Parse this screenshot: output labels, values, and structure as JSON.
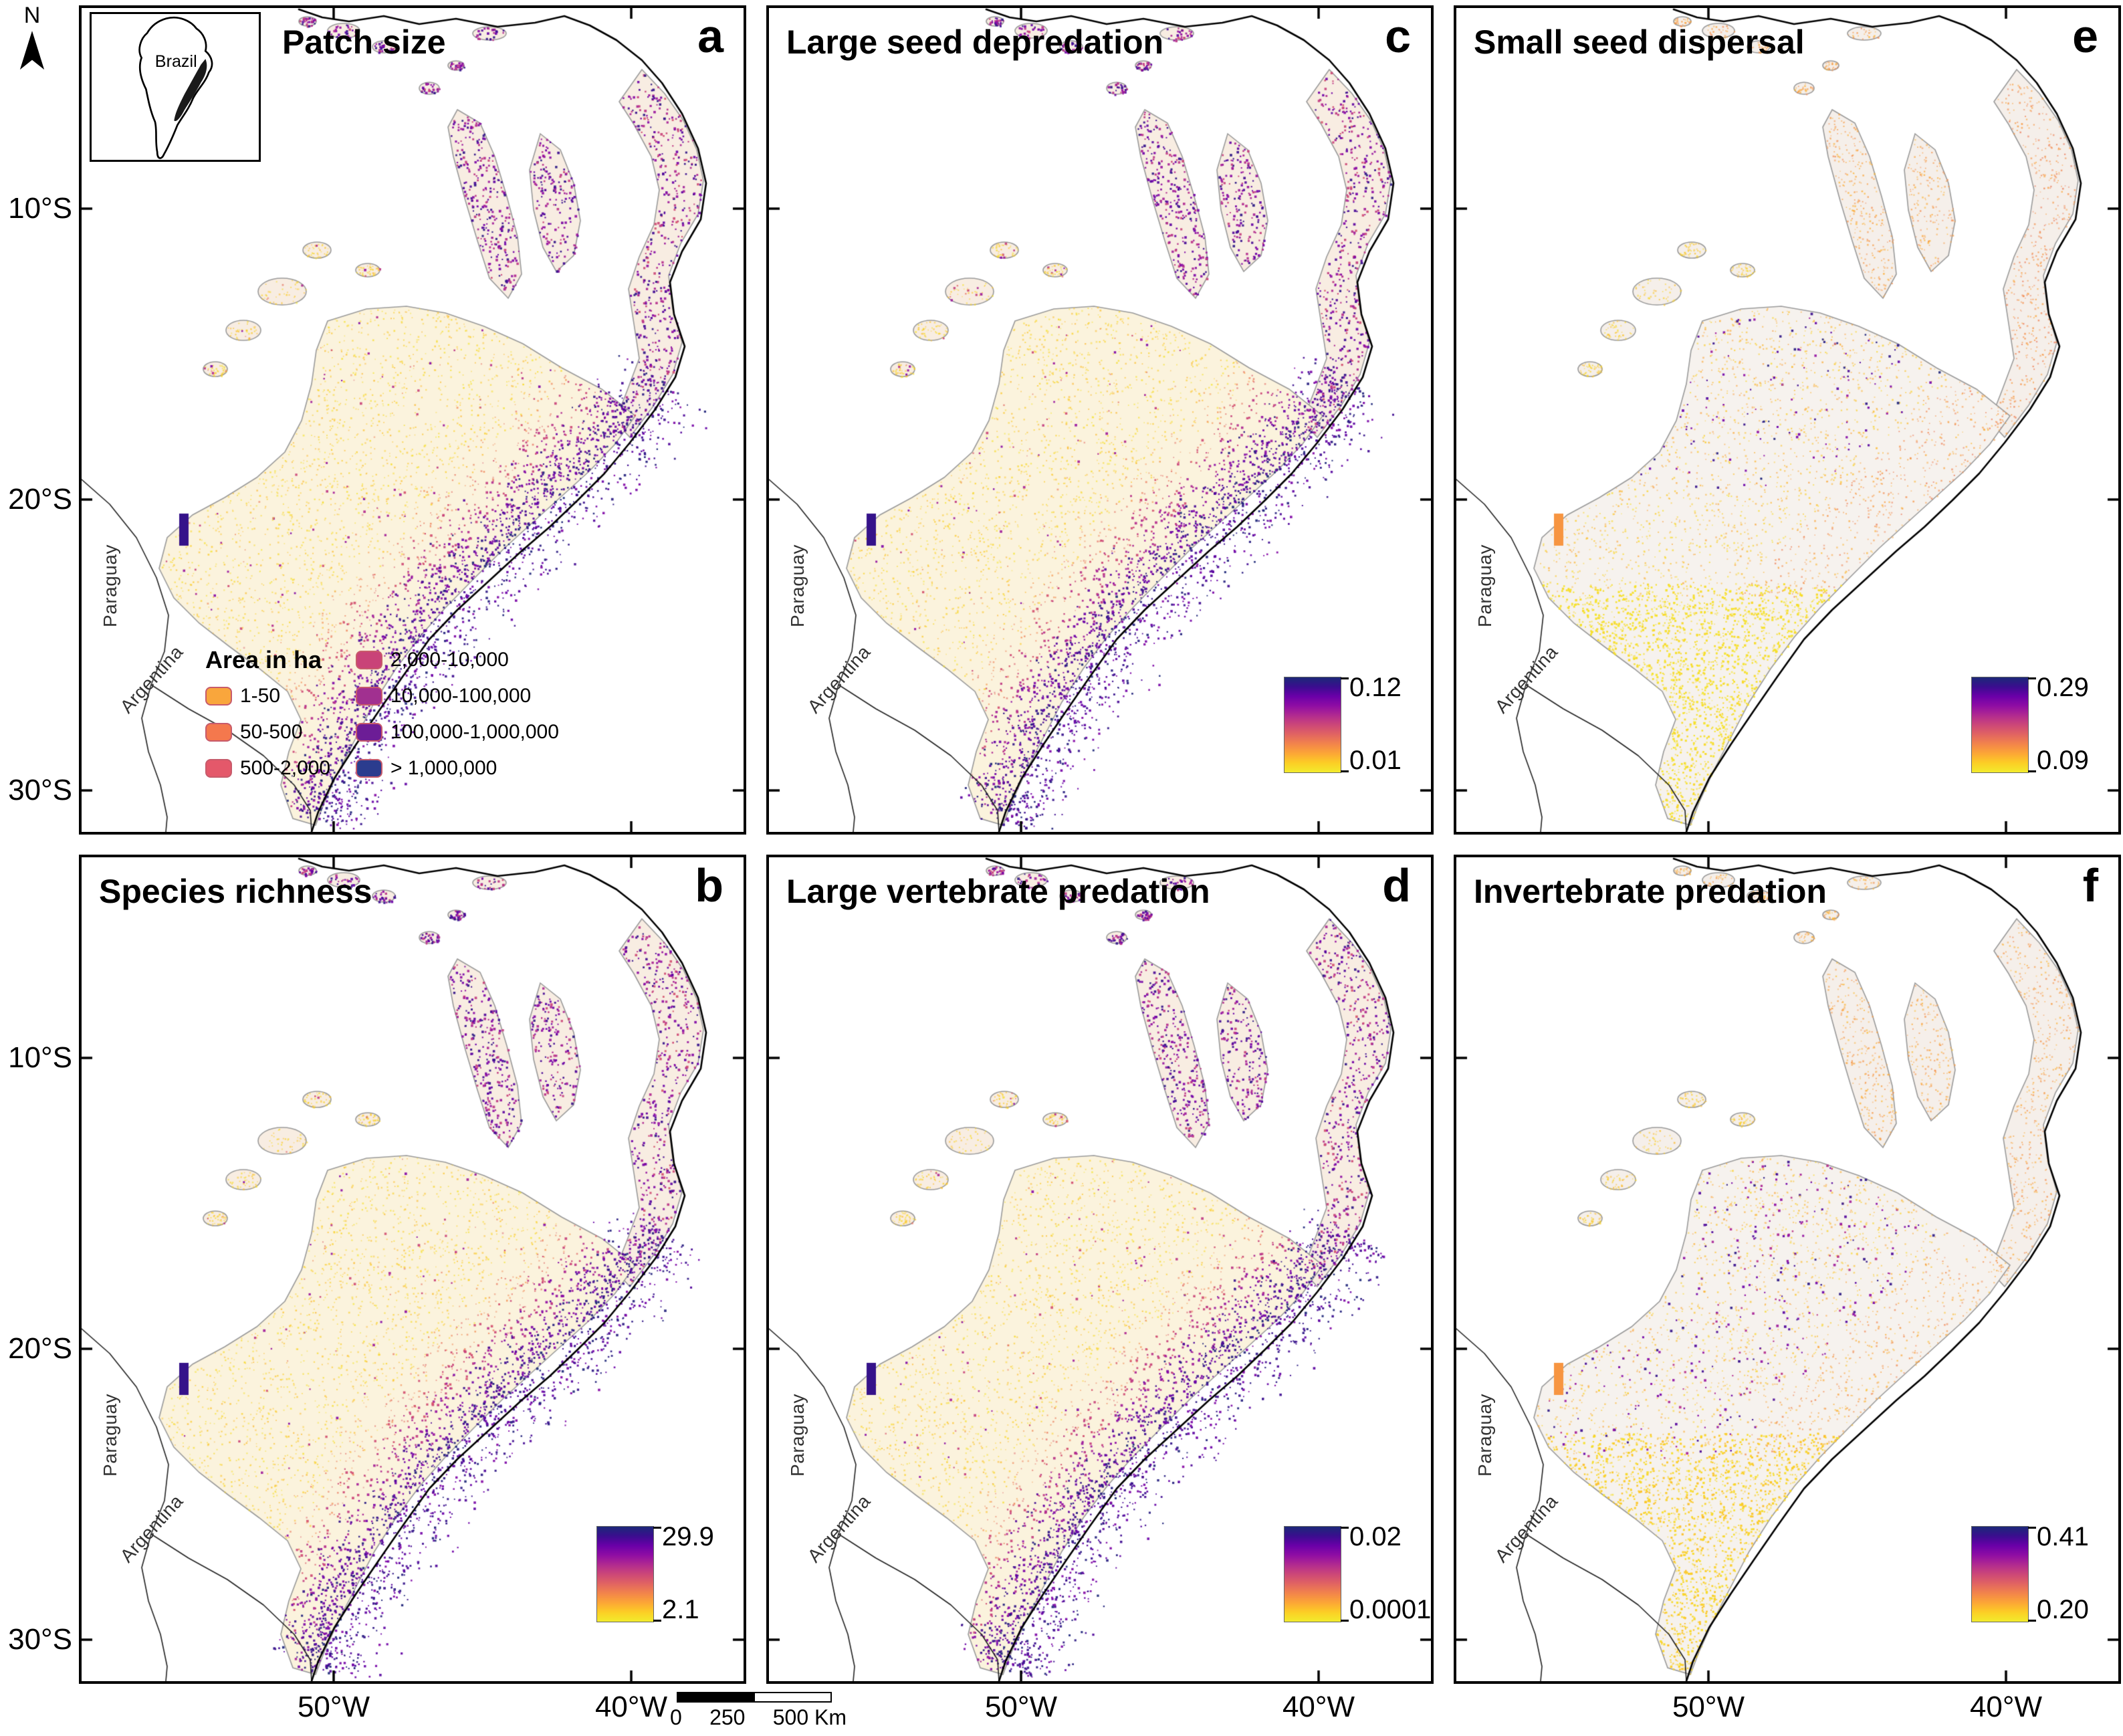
{
  "figure": {
    "compass_label": "N",
    "inset_label": "Brazil",
    "country_labels": {
      "paraguay": "Paraguay",
      "argentina": "Argentina"
    },
    "scalebar": {
      "t0": "0",
      "t1": "250",
      "t2": "500",
      "unit": "Km"
    }
  },
  "axes": {
    "lat": [
      "10°S",
      "20°S",
      "30°S"
    ],
    "lon": [
      "50°W",
      "40°W"
    ]
  },
  "colors": {
    "map_stops": [
      [
        "0",
        "#F2EC2C"
      ],
      [
        "0.1",
        "#FCCE25"
      ],
      [
        "0.2",
        "#FCA636"
      ],
      [
        "0.3",
        "#F2844B"
      ],
      [
        "0.4",
        "#E16462"
      ],
      [
        "0.5",
        "#CC4778"
      ],
      [
        "0.6",
        "#B12A90"
      ],
      [
        "0.7",
        "#8F0DA4"
      ],
      [
        "0.8",
        "#6A00A8"
      ],
      [
        "0.9",
        "#3B0D8F"
      ],
      [
        "1",
        "#1C2878"
      ]
    ],
    "swatch_border": "#C75B6B",
    "ocean": "#FFFFFF"
  },
  "panels": [
    {
      "letter": "a",
      "title": "Patch size",
      "pattern": "coast_high",
      "legend": {
        "title": "Area in ha",
        "items": [
          {
            "label": "1-50",
            "color": "#F9A63C"
          },
          {
            "label": "50-500",
            "color": "#F4784D"
          },
          {
            "label": "500-2,000",
            "color": "#E4586A"
          },
          {
            "label": "2,000-10,000",
            "color": "#C94378"
          },
          {
            "label": "10,000-100,000",
            "color": "#A13090"
          },
          {
            "label": "100,000-1,000,000",
            "color": "#6C1D96"
          },
          {
            "label": "> 1,000,000",
            "color": "#2B3C8E"
          }
        ]
      }
    },
    {
      "letter": "c",
      "title": "Large seed depredation",
      "pattern": "coast_high",
      "colorbar": {
        "max": "0.12",
        "min": "0.01"
      }
    },
    {
      "letter": "e",
      "title": "Small seed dispersal",
      "pattern": "dispersal_e",
      "colorbar": {
        "max": "0.29",
        "min": "0.09"
      }
    },
    {
      "letter": "b",
      "title": "Species richness",
      "pattern": "coast_high",
      "colorbar": {
        "max": "29.9",
        "min": "2.1"
      }
    },
    {
      "letter": "d",
      "title": "Large vertebrate predation",
      "pattern": "coast_high",
      "colorbar": {
        "max": "0.02",
        "min": "0.0001"
      }
    },
    {
      "letter": "f",
      "title": "Invertebrate predation",
      "pattern": "dispersal_f",
      "colorbar": {
        "max": "0.41",
        "min": "0.20"
      }
    }
  ]
}
